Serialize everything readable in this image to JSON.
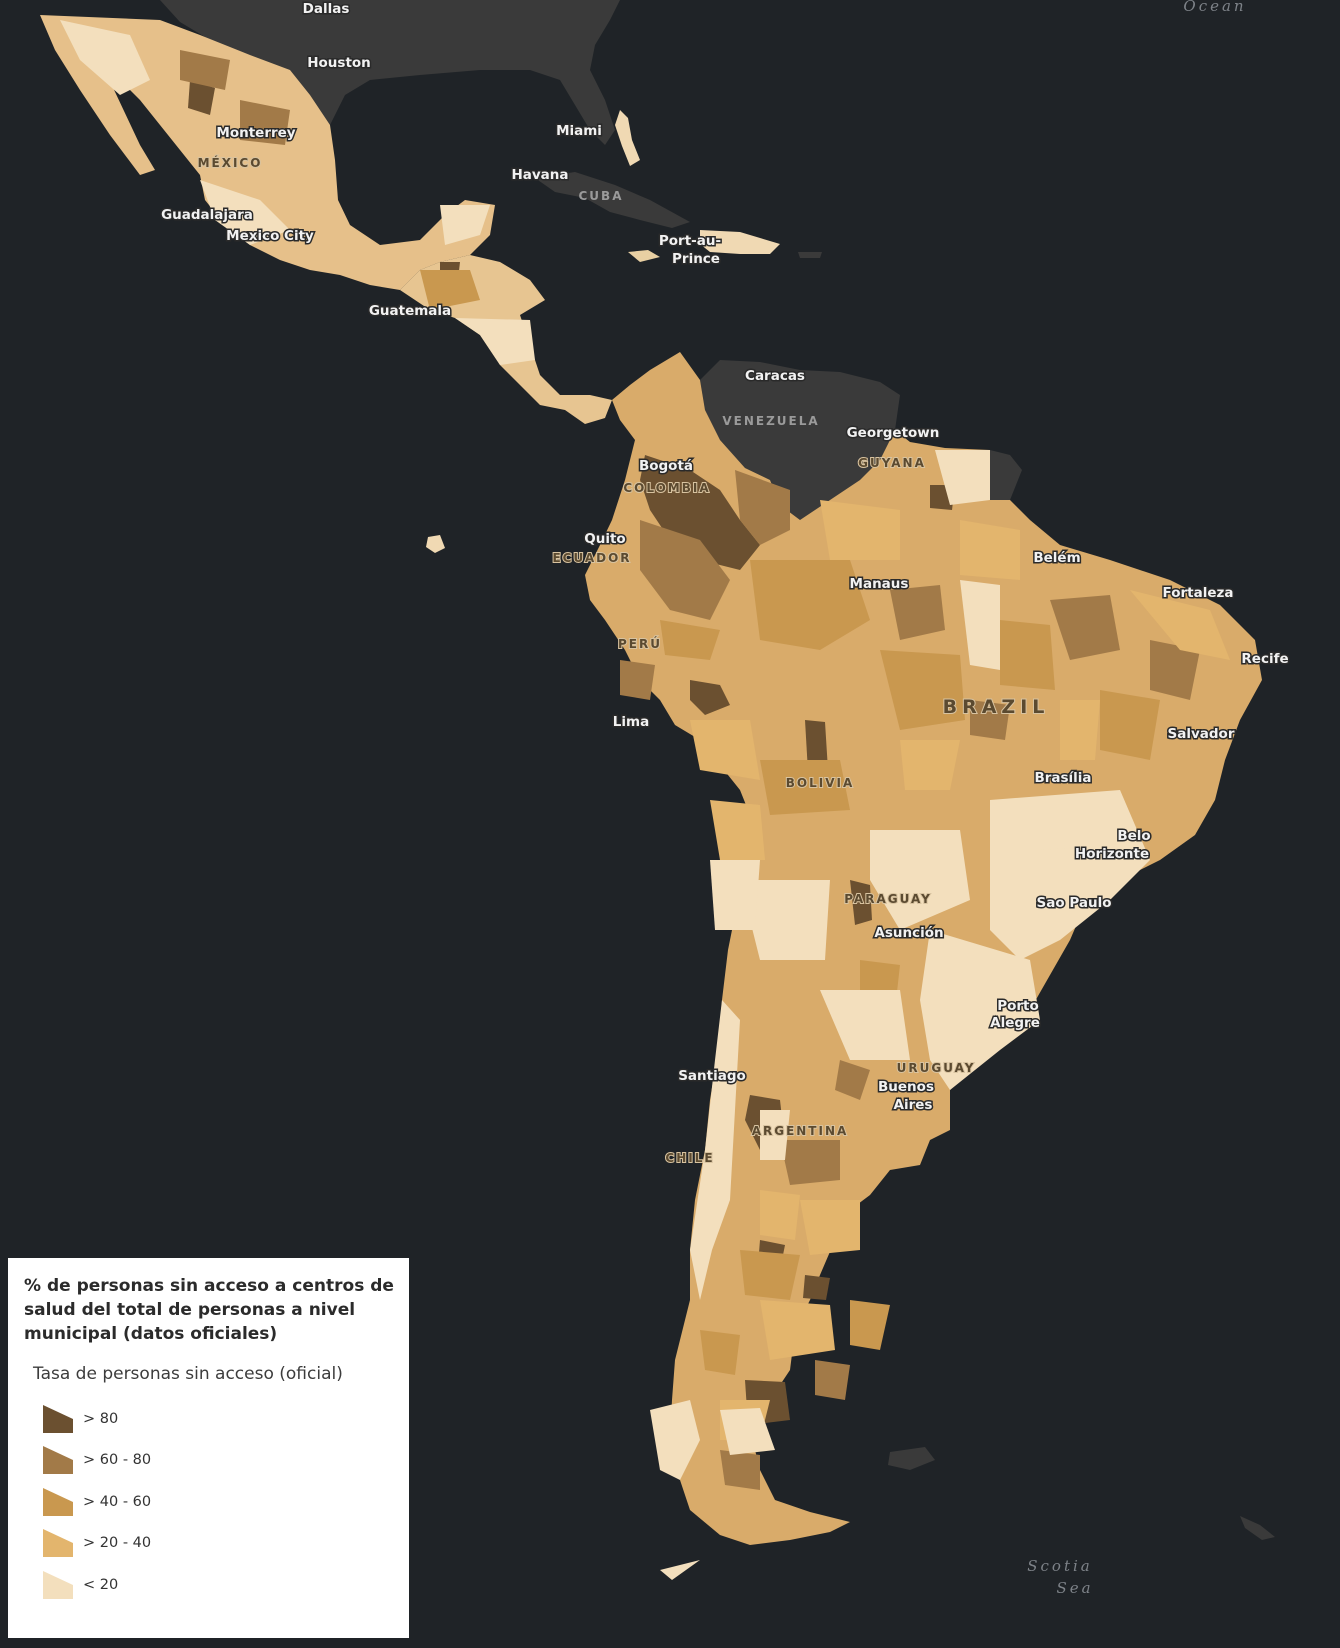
{
  "colors": {
    "ocean": "#1f2327",
    "land_other": "#3a3a3a",
    "class_gt80": "#6b5030",
    "class_60_80": "#a27a48",
    "class_40_60": "#c9984f",
    "class_20_40": "#e3b56d",
    "class_lt20": "#f3dfbd"
  },
  "legend": {
    "title": "% de personas sin acceso a centros de salud del total de personas a nivel municipal (datos oficiales)",
    "subtitle": "Tasa de personas sin acceso (oficial)",
    "items": [
      {
        "label": "> 80",
        "color": "#6b5030"
      },
      {
        "label": "> 60 - 80",
        "color": "#a27a48"
      },
      {
        "label": "> 40 - 60",
        "color": "#c9984f"
      },
      {
        "label": "> 20 - 40",
        "color": "#e3b56d"
      },
      {
        "label": "< 20",
        "color": "#f3dfbd"
      }
    ]
  },
  "labels": {
    "dallas": "Dallas",
    "houston": "Houston",
    "ocean": "Ocean",
    "monterrey": "Monterrey",
    "mexico": "MÉXICO",
    "miami": "Miami",
    "havana": "Havana",
    "cuba": "CUBA",
    "guadalajara": "Guadalajara",
    "mexico_city": "Mexico City",
    "port_au": "Port-au-",
    "prince": "Prince",
    "guatemala": "Guatemala",
    "caracas": "Caracas",
    "venezuela": "VENEZUELA",
    "georgetown": "Georgetown",
    "guyana": "GUYANA",
    "bogota": "Bogotá",
    "colombia": "COLOMBIA",
    "quito": "Quito",
    "ecuador": "ECUADOR",
    "belem": "Belém",
    "manaus": "Manaus",
    "fortaleza": "Fortaleza",
    "peru": "PERÚ",
    "recife": "Recife",
    "brazil": "BRAZIL",
    "lima": "Lima",
    "salvador": "Salvador",
    "brasilia": "Brasília",
    "bolivia": "BOLIVIA",
    "belo": "Belo",
    "horizonte": "Horizonte",
    "paraguay": "PARAGUAY",
    "sao_paulo": "Sao Paulo",
    "asuncion": "Asunción",
    "porto": "Porto",
    "alegre": "Alegre",
    "uruguay": "URUGUAY",
    "santiago": "Santiago",
    "buenos": "Buenos",
    "aires": "Aires",
    "argentina": "ARGENTINA",
    "chile": "CHILE",
    "scotia": "Scotia",
    "sea": "Sea"
  }
}
